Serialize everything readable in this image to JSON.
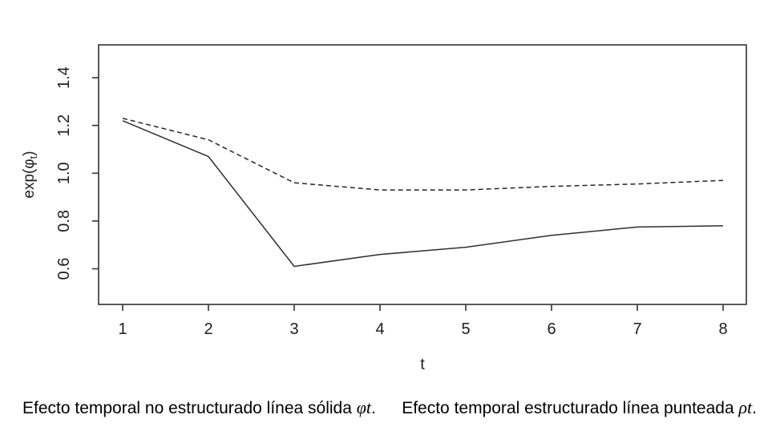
{
  "chart_data": {
    "type": "line",
    "x": [
      1,
      2,
      3,
      4,
      5,
      6,
      7,
      8
    ],
    "series": [
      {
        "name": "Efecto temporal no estructurado (linea solida, phi_t)",
        "style": "solid",
        "color": "#2f2f2f",
        "values": [
          1.22,
          1.07,
          0.61,
          0.66,
          0.69,
          0.74,
          0.775,
          0.78
        ]
      },
      {
        "name": "Efecto temporal estructurado (linea punteada, rho_t)",
        "style": "dashed",
        "color": "#262626",
        "values": [
          1.23,
          1.14,
          0.96,
          0.93,
          0.93,
          0.945,
          0.955,
          0.97
        ]
      }
    ],
    "title": "",
    "xlabel": "t",
    "ylabel": "exp(φt)",
    "ylabel_parts": {
      "prefix": "exp(φ",
      "sub": "t",
      "suffix": ")"
    },
    "x_tick_labels": [
      "1",
      "2",
      "3",
      "4",
      "5",
      "6",
      "7",
      "8"
    ],
    "x_ticks": [
      1,
      2,
      3,
      4,
      5,
      6,
      7,
      8
    ],
    "y_tick_labels": [
      "0.6",
      "0.8",
      "1.0",
      "1.2",
      "1.4"
    ],
    "y_ticks": [
      0.6,
      0.8,
      1.0,
      1.2,
      1.4
    ],
    "xlim": [
      0.72,
      8.27
    ],
    "ylim": [
      0.45,
      1.54
    ],
    "grid": false,
    "legend": "none",
    "axis_color": "#3d3d3d",
    "tick_text_color": "#1e1e1e"
  },
  "captions": {
    "left": {
      "text": "Efecto temporal no estructurado línea sólida ",
      "math": "φt",
      "suffix": "."
    },
    "right": {
      "text": "Efecto temporal estructurado línea punteada ",
      "math": "ρt",
      "suffix": "."
    }
  }
}
